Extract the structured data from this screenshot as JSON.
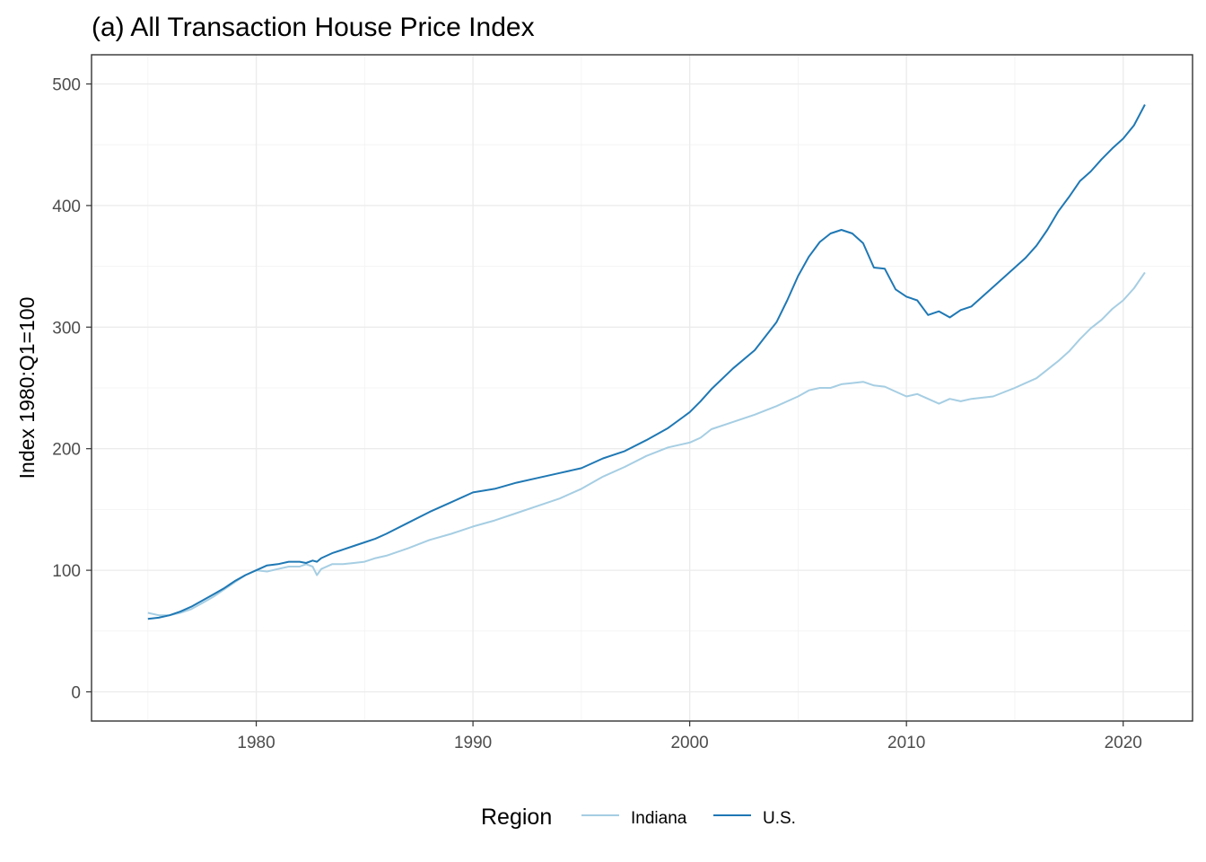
{
  "chart_data": {
    "type": "line",
    "title": "(a) All Transaction House Price Index",
    "xlabel": "",
    "ylabel": "Index 1980:Q1=100",
    "xlim": [
      1972.4,
      2023.2
    ],
    "ylim": [
      -24,
      524
    ],
    "x_ticks": [
      1980,
      1990,
      2000,
      2010,
      2020
    ],
    "y_ticks": [
      0,
      100,
      200,
      300,
      400,
      500
    ],
    "grid": true,
    "legend": {
      "title": "Region",
      "position": "bottom",
      "entries": [
        "Indiana",
        "U.S."
      ]
    },
    "series": [
      {
        "name": "Indiana",
        "color": "#a6cee3",
        "points": [
          [
            1975.0,
            65
          ],
          [
            1975.5,
            63
          ],
          [
            1976.0,
            63
          ],
          [
            1976.5,
            65
          ],
          [
            1977.0,
            68
          ],
          [
            1977.5,
            73
          ],
          [
            1978.0,
            78
          ],
          [
            1978.5,
            84
          ],
          [
            1979.0,
            90
          ],
          [
            1979.5,
            96
          ],
          [
            1980.0,
            100
          ],
          [
            1980.5,
            99
          ],
          [
            1981.0,
            101
          ],
          [
            1981.5,
            103
          ],
          [
            1982.0,
            103
          ],
          [
            1982.3,
            105
          ],
          [
            1982.6,
            103
          ],
          [
            1982.8,
            96
          ],
          [
            1983.0,
            101
          ],
          [
            1983.5,
            105
          ],
          [
            1984.0,
            105
          ],
          [
            1984.5,
            106
          ],
          [
            1985.0,
            107
          ],
          [
            1985.5,
            110
          ],
          [
            1986.0,
            112
          ],
          [
            1987.0,
            118
          ],
          [
            1988.0,
            125
          ],
          [
            1989.0,
            130
          ],
          [
            1990.0,
            136
          ],
          [
            1991.0,
            141
          ],
          [
            1992.0,
            147
          ],
          [
            1993.0,
            153
          ],
          [
            1994.0,
            159
          ],
          [
            1995.0,
            167
          ],
          [
            1996.0,
            177
          ],
          [
            1997.0,
            185
          ],
          [
            1998.0,
            194
          ],
          [
            1999.0,
            201
          ],
          [
            2000.0,
            205
          ],
          [
            2000.5,
            209
          ],
          [
            2001.0,
            216
          ],
          [
            2002.0,
            222
          ],
          [
            2003.0,
            228
          ],
          [
            2004.0,
            235
          ],
          [
            2005.0,
            243
          ],
          [
            2005.5,
            248
          ],
          [
            2006.0,
            250
          ],
          [
            2006.5,
            250
          ],
          [
            2007.0,
            253
          ],
          [
            2007.5,
            254
          ],
          [
            2008.0,
            255
          ],
          [
            2008.5,
            252
          ],
          [
            2009.0,
            251
          ],
          [
            2009.5,
            247
          ],
          [
            2010.0,
            243
          ],
          [
            2010.5,
            245
          ],
          [
            2011.0,
            241
          ],
          [
            2011.5,
            237
          ],
          [
            2012.0,
            241
          ],
          [
            2012.5,
            239
          ],
          [
            2013.0,
            241
          ],
          [
            2014.0,
            243
          ],
          [
            2015.0,
            250
          ],
          [
            2015.5,
            254
          ],
          [
            2016.0,
            258
          ],
          [
            2016.5,
            265
          ],
          [
            2017.0,
            272
          ],
          [
            2017.5,
            280
          ],
          [
            2018.0,
            290
          ],
          [
            2018.5,
            299
          ],
          [
            2019.0,
            306
          ],
          [
            2019.5,
            315
          ],
          [
            2020.0,
            322
          ],
          [
            2020.5,
            332
          ],
          [
            2021.0,
            345
          ]
        ]
      },
      {
        "name": "U.S.",
        "color": "#1f78b4",
        "points": [
          [
            1975.0,
            60
          ],
          [
            1975.5,
            61
          ],
          [
            1976.0,
            63
          ],
          [
            1976.5,
            66
          ],
          [
            1977.0,
            70
          ],
          [
            1977.5,
            75
          ],
          [
            1978.0,
            80
          ],
          [
            1978.5,
            85
          ],
          [
            1979.0,
            91
          ],
          [
            1979.5,
            96
          ],
          [
            1980.0,
            100
          ],
          [
            1980.5,
            104
          ],
          [
            1981.0,
            105
          ],
          [
            1981.5,
            107
          ],
          [
            1982.0,
            107
          ],
          [
            1982.3,
            106
          ],
          [
            1982.6,
            108
          ],
          [
            1982.8,
            107
          ],
          [
            1983.0,
            110
          ],
          [
            1983.5,
            114
          ],
          [
            1984.0,
            117
          ],
          [
            1984.5,
            120
          ],
          [
            1985.0,
            123
          ],
          [
            1985.5,
            126
          ],
          [
            1986.0,
            130
          ],
          [
            1987.0,
            139
          ],
          [
            1988.0,
            148
          ],
          [
            1989.0,
            156
          ],
          [
            1990.0,
            164
          ],
          [
            1991.0,
            167
          ],
          [
            1992.0,
            172
          ],
          [
            1993.0,
            176
          ],
          [
            1994.0,
            180
          ],
          [
            1995.0,
            184
          ],
          [
            1996.0,
            192
          ],
          [
            1997.0,
            198
          ],
          [
            1998.0,
            207
          ],
          [
            1999.0,
            217
          ],
          [
            2000.0,
            230
          ],
          [
            2000.5,
            239
          ],
          [
            2001.0,
            249
          ],
          [
            2002.0,
            266
          ],
          [
            2003.0,
            281
          ],
          [
            2004.0,
            304
          ],
          [
            2004.5,
            322
          ],
          [
            2005.0,
            342
          ],
          [
            2005.5,
            358
          ],
          [
            2006.0,
            370
          ],
          [
            2006.5,
            377
          ],
          [
            2007.0,
            380
          ],
          [
            2007.5,
            377
          ],
          [
            2008.0,
            369
          ],
          [
            2008.5,
            349
          ],
          [
            2009.0,
            348
          ],
          [
            2009.5,
            331
          ],
          [
            2010.0,
            325
          ],
          [
            2010.5,
            322
          ],
          [
            2011.0,
            310
          ],
          [
            2011.5,
            313
          ],
          [
            2012.0,
            308
          ],
          [
            2012.5,
            314
          ],
          [
            2013.0,
            317
          ],
          [
            2014.0,
            333
          ],
          [
            2015.0,
            349
          ],
          [
            2015.5,
            357
          ],
          [
            2016.0,
            367
          ],
          [
            2016.5,
            380
          ],
          [
            2017.0,
            395
          ],
          [
            2017.5,
            407
          ],
          [
            2018.0,
            420
          ],
          [
            2018.5,
            428
          ],
          [
            2019.0,
            438
          ],
          [
            2019.5,
            447
          ],
          [
            2020.0,
            455
          ],
          [
            2020.5,
            466
          ],
          [
            2021.0,
            483
          ]
        ]
      }
    ]
  }
}
